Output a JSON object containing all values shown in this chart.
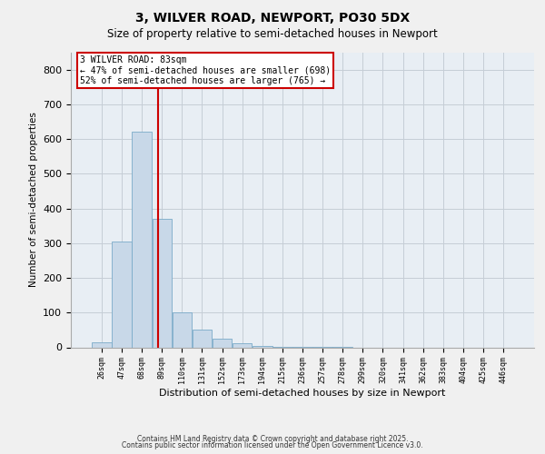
{
  "title": "3, WILVER ROAD, NEWPORT, PO30 5DX",
  "subtitle": "Size of property relative to semi-detached houses in Newport",
  "xlabel": "Distribution of semi-detached houses by size in Newport",
  "ylabel": "Number of semi-detached properties",
  "bar_color": "#c8d8e8",
  "bar_edge_color": "#7aaac8",
  "background_color": "#e8eef4",
  "grid_color": "#c5cdd6",
  "categories": [
    "26sqm",
    "47sqm",
    "68sqm",
    "89sqm",
    "110sqm",
    "131sqm",
    "152sqm",
    "173sqm",
    "194sqm",
    "215sqm",
    "236sqm",
    "257sqm",
    "278sqm",
    "299sqm",
    "320sqm",
    "341sqm",
    "362sqm",
    "383sqm",
    "404sqm",
    "425sqm",
    "446sqm"
  ],
  "values": [
    15,
    305,
    620,
    370,
    100,
    50,
    25,
    12,
    5,
    2,
    2,
    2,
    2,
    0,
    0,
    0,
    0,
    0,
    0,
    0,
    0
  ],
  "ylim": [
    0,
    850
  ],
  "yticks": [
    0,
    100,
    200,
    300,
    400,
    500,
    600,
    700,
    800
  ],
  "property_label": "3 WILVER ROAD: 83sqm",
  "annotation_line1": "← 47% of semi-detached houses are smaller (698)",
  "annotation_line2": "52% of semi-detached houses are larger (765) →",
  "annotation_box_color": "#ffffff",
  "annotation_box_edge": "#cc0000",
  "vline_color": "#cc0000",
  "vline_x": 2.795,
  "footnote1": "Contains HM Land Registry data © Crown copyright and database right 2025.",
  "footnote2": "Contains public sector information licensed under the Open Government Licence v3.0."
}
